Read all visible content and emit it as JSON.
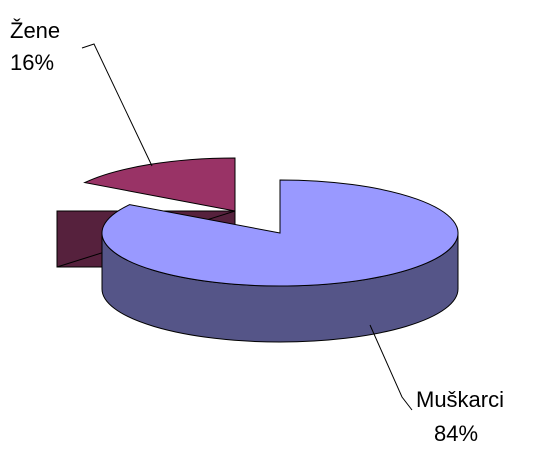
{
  "chart_data": {
    "type": "pie",
    "title": "",
    "style": "3d-exploded",
    "slices": [
      {
        "label": "Muškarci",
        "value": 84,
        "value_label": "84%",
        "color": "#9999ff",
        "side_color": "#555588"
      },
      {
        "label": "Žene",
        "value": 16,
        "value_label": "16%",
        "color": "#993366",
        "side_color": "#56213d"
      }
    ]
  }
}
